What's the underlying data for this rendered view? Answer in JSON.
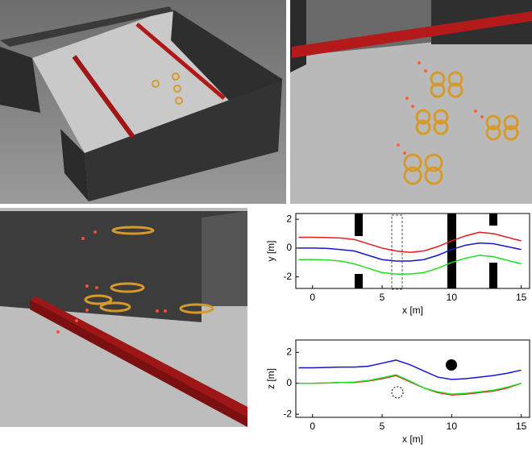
{
  "chart_data": [
    {
      "type": "line",
      "xlabel": "x [m]",
      "ylabel": "y [m]",
      "x": [
        -1,
        0,
        1,
        2,
        3,
        4,
        5,
        6,
        7,
        8,
        9,
        10,
        11,
        12,
        13,
        14,
        15
      ],
      "series": [
        {
          "color": "#e41a1c",
          "values": [
            0.75,
            0.75,
            0.73,
            0.7,
            0.6,
            0.3,
            0.0,
            -0.2,
            -0.3,
            -0.2,
            0.1,
            0.5,
            0.85,
            1.1,
            1.0,
            0.75,
            0.5
          ]
        },
        {
          "color": "#1515d0",
          "values": [
            0,
            0,
            -0.02,
            -0.1,
            -0.2,
            -0.5,
            -0.8,
            -0.9,
            -0.9,
            -0.8,
            -0.5,
            -0.1,
            0.2,
            0.35,
            0.3,
            0.1,
            -0.1
          ]
        },
        {
          "color": "#22dd22",
          "values": [
            -0.8,
            -0.8,
            -0.82,
            -0.9,
            -1.1,
            -1.4,
            -1.7,
            -1.8,
            -1.8,
            -1.7,
            -1.4,
            -1.0,
            -0.7,
            -0.5,
            -0.6,
            -0.85,
            -1.1
          ]
        }
      ],
      "xlim": [
        -1.2,
        15.6
      ],
      "ylim": [
        -2.8,
        2.4
      ],
      "xticks": [
        0,
        5,
        10,
        15
      ],
      "yticks": [
        -2,
        0,
        2
      ]
    },
    {
      "type": "line",
      "xlabel": "x [m]",
      "ylabel": "z [m]",
      "x": [
        -1,
        0,
        1,
        2,
        3,
        4,
        5,
        6,
        7,
        8,
        9,
        10,
        11,
        12,
        13,
        14,
        15
      ],
      "series": [
        {
          "color": "#1515d0",
          "values": [
            1.0,
            1.0,
            1.02,
            1.05,
            1.05,
            1.1,
            1.3,
            1.5,
            1.2,
            0.8,
            0.4,
            0.25,
            0.3,
            0.4,
            0.5,
            0.65,
            0.85
          ]
        },
        {
          "color": "#e41a1c",
          "values": [
            0,
            0,
            0.02,
            0.05,
            0.05,
            0.15,
            0.3,
            0.5,
            0.1,
            -0.3,
            -0.6,
            -0.75,
            -0.7,
            -0.6,
            -0.5,
            -0.3,
            0.0
          ]
        },
        {
          "color": "#22dd22",
          "values": [
            0,
            0,
            0.02,
            0.05,
            0.08,
            0.18,
            0.35,
            0.55,
            0.15,
            -0.3,
            -0.55,
            -0.7,
            -0.65,
            -0.55,
            -0.45,
            -0.25,
            0.0
          ]
        }
      ],
      "xlim": [
        -1.2,
        15.6
      ],
      "ylim": [
        -2.2,
        2.8
      ],
      "xticks": [
        0,
        5,
        10,
        15
      ],
      "yticks": [
        -2,
        0,
        2
      ]
    }
  ]
}
